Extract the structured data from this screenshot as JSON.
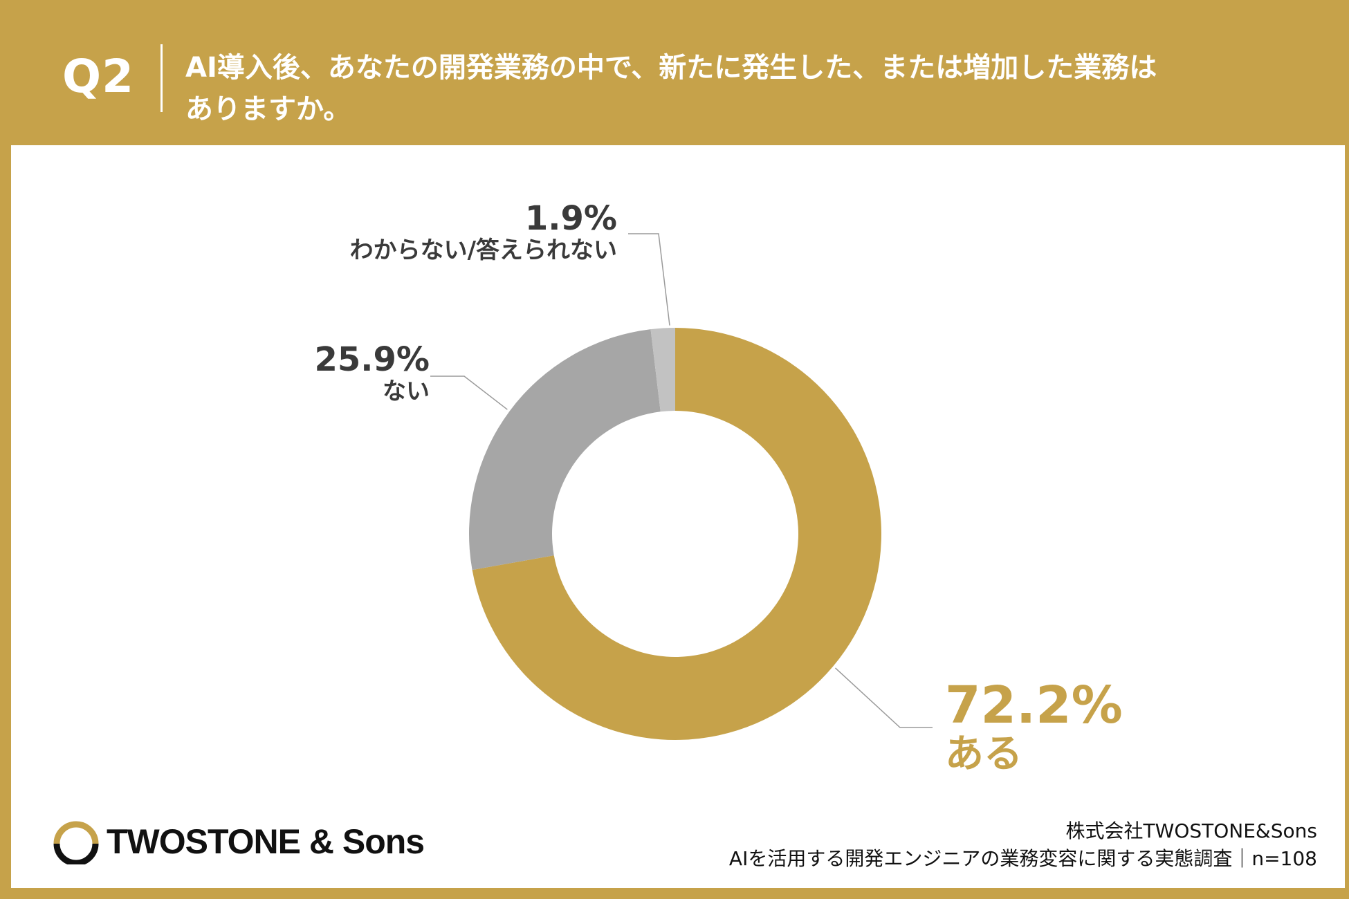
{
  "header": {
    "q_label": "Q2",
    "question_line1": "AI導入後、あなたの開発業務の中で、新たに発生した、または増加した業務は",
    "question_line2": "ありますか。"
  },
  "colors": {
    "gold": "#c6a24a",
    "gray": "#a6a6a6",
    "light_gray": "#c2c2c2",
    "text_dark": "#3a3a3a"
  },
  "chart_data": {
    "type": "pie",
    "style": "donut",
    "categories": [
      "ある",
      "ない",
      "わからない/答えられない"
    ],
    "values": [
      72.2,
      25.9,
      1.9
    ],
    "value_labels": [
      "72.2%",
      "25.9%",
      "1.9%"
    ],
    "colors": [
      "#c6a24a",
      "#a6a6a6",
      "#c2c2c2"
    ],
    "start_angle": "12 o'clock",
    "direction": "clockwise"
  },
  "footer": {
    "logo_text": "TWOSTONE & Sons",
    "company": "株式会社TWOSTONE&Sons",
    "survey": "AIを活用する開発エンジニアの業務変容に関する実態調査｜n=108"
  }
}
